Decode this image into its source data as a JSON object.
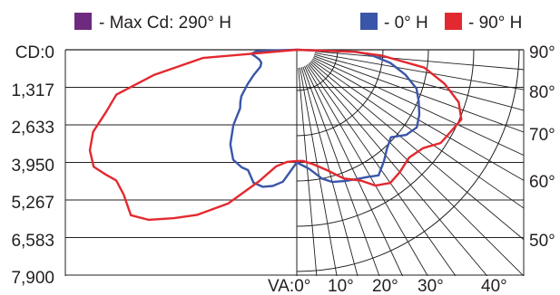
{
  "chart_data": {
    "type": "polar",
    "legend": [
      {
        "label": "-  Max Cd: 290° H",
        "color": "#6e2a7f"
      },
      {
        "label": "- 0° H",
        "color": "#3a56a8"
      },
      {
        "label": "- 90° H",
        "color": "#e3292f"
      }
    ],
    "y_tick_labels": [
      "CD:0",
      "1,317",
      "2,633",
      "3,950",
      "5,267",
      "6,583",
      "7,900"
    ],
    "x_tick_labels": [
      "VA:0°",
      "10°",
      "20°",
      "30°",
      "40°"
    ],
    "right_angle_labels": [
      "90°",
      "80°",
      "70°",
      "60°",
      "50°"
    ],
    "va_values": [
      0,
      10,
      20,
      30,
      40
    ],
    "right_angle_values": [
      90,
      80,
      70,
      60,
      50
    ],
    "cd_max": 7900,
    "series": [
      {
        "name": "0° H",
        "color": "#3a56a8",
        "points": [
          [
            -90,
            0
          ],
          [
            -88,
            1400
          ],
          [
            -85,
            1600
          ],
          [
            -80,
            1450
          ],
          [
            -75,
            1350
          ],
          [
            -70,
            1320
          ],
          [
            -65,
            1400
          ],
          [
            -60,
            1720
          ],
          [
            -55,
            2100
          ],
          [
            -50,
            2530
          ],
          [
            -47,
            2700
          ],
          [
            -44,
            2850
          ],
          [
            -40,
            3450
          ],
          [
            -35,
            4050
          ],
          [
            -30,
            4450
          ],
          [
            -25,
            4550
          ],
          [
            -22,
            4550
          ],
          [
            -18,
            4900
          ],
          [
            -14,
            4950
          ],
          [
            -10,
            4850
          ],
          [
            -6,
            4650
          ],
          [
            0,
            3950
          ],
          [
            6,
            4200
          ],
          [
            11,
            4600
          ],
          [
            15,
            4800
          ],
          [
            20,
            4900
          ],
          [
            25,
            5000
          ],
          [
            29,
            5100
          ],
          [
            33,
            5250
          ],
          [
            38,
            4950
          ],
          [
            42,
            4700
          ],
          [
            47,
            4500
          ],
          [
            52,
            4850
          ],
          [
            57,
            5000
          ],
          [
            62,
            4850
          ],
          [
            67,
            4630
          ],
          [
            72,
            4400
          ],
          [
            77,
            3900
          ],
          [
            82,
            3300
          ],
          [
            86,
            2600
          ],
          [
            88,
            2100
          ],
          [
            90,
            0
          ]
        ]
      },
      {
        "name": "90° H",
        "color": "#e3292f",
        "points": [
          [
            -90,
            0
          ],
          [
            -85,
            3300
          ],
          [
            -80,
            5050
          ],
          [
            -76,
            6500
          ],
          [
            -72,
            7000
          ],
          [
            -68,
            7680
          ],
          [
            -64,
            8050
          ],
          [
            -60,
            8200
          ],
          [
            -57,
            8000
          ],
          [
            -54,
            7800
          ],
          [
            -50,
            7900
          ],
          [
            -45,
            8200
          ],
          [
            -41,
            7900
          ],
          [
            -36,
            7300
          ],
          [
            -31,
            6750
          ],
          [
            -24,
            5900
          ],
          [
            -16,
            4800
          ],
          [
            -10,
            4150
          ],
          [
            -5,
            3950
          ],
          [
            0,
            3900
          ],
          [
            3,
            3900
          ],
          [
            8,
            4050
          ],
          [
            14,
            4350
          ],
          [
            20,
            4800
          ],
          [
            26,
            5100
          ],
          [
            30,
            5500
          ],
          [
            35,
            5700
          ],
          [
            40,
            5600
          ],
          [
            46,
            5450
          ],
          [
            52,
            5600
          ],
          [
            57,
            6000
          ],
          [
            62,
            6100
          ],
          [
            67,
            6250
          ],
          [
            72,
            5950
          ],
          [
            77,
            5300
          ],
          [
            82,
            4500
          ],
          [
            86,
            3000
          ],
          [
            88,
            2000
          ],
          [
            90,
            0
          ]
        ]
      }
    ]
  }
}
